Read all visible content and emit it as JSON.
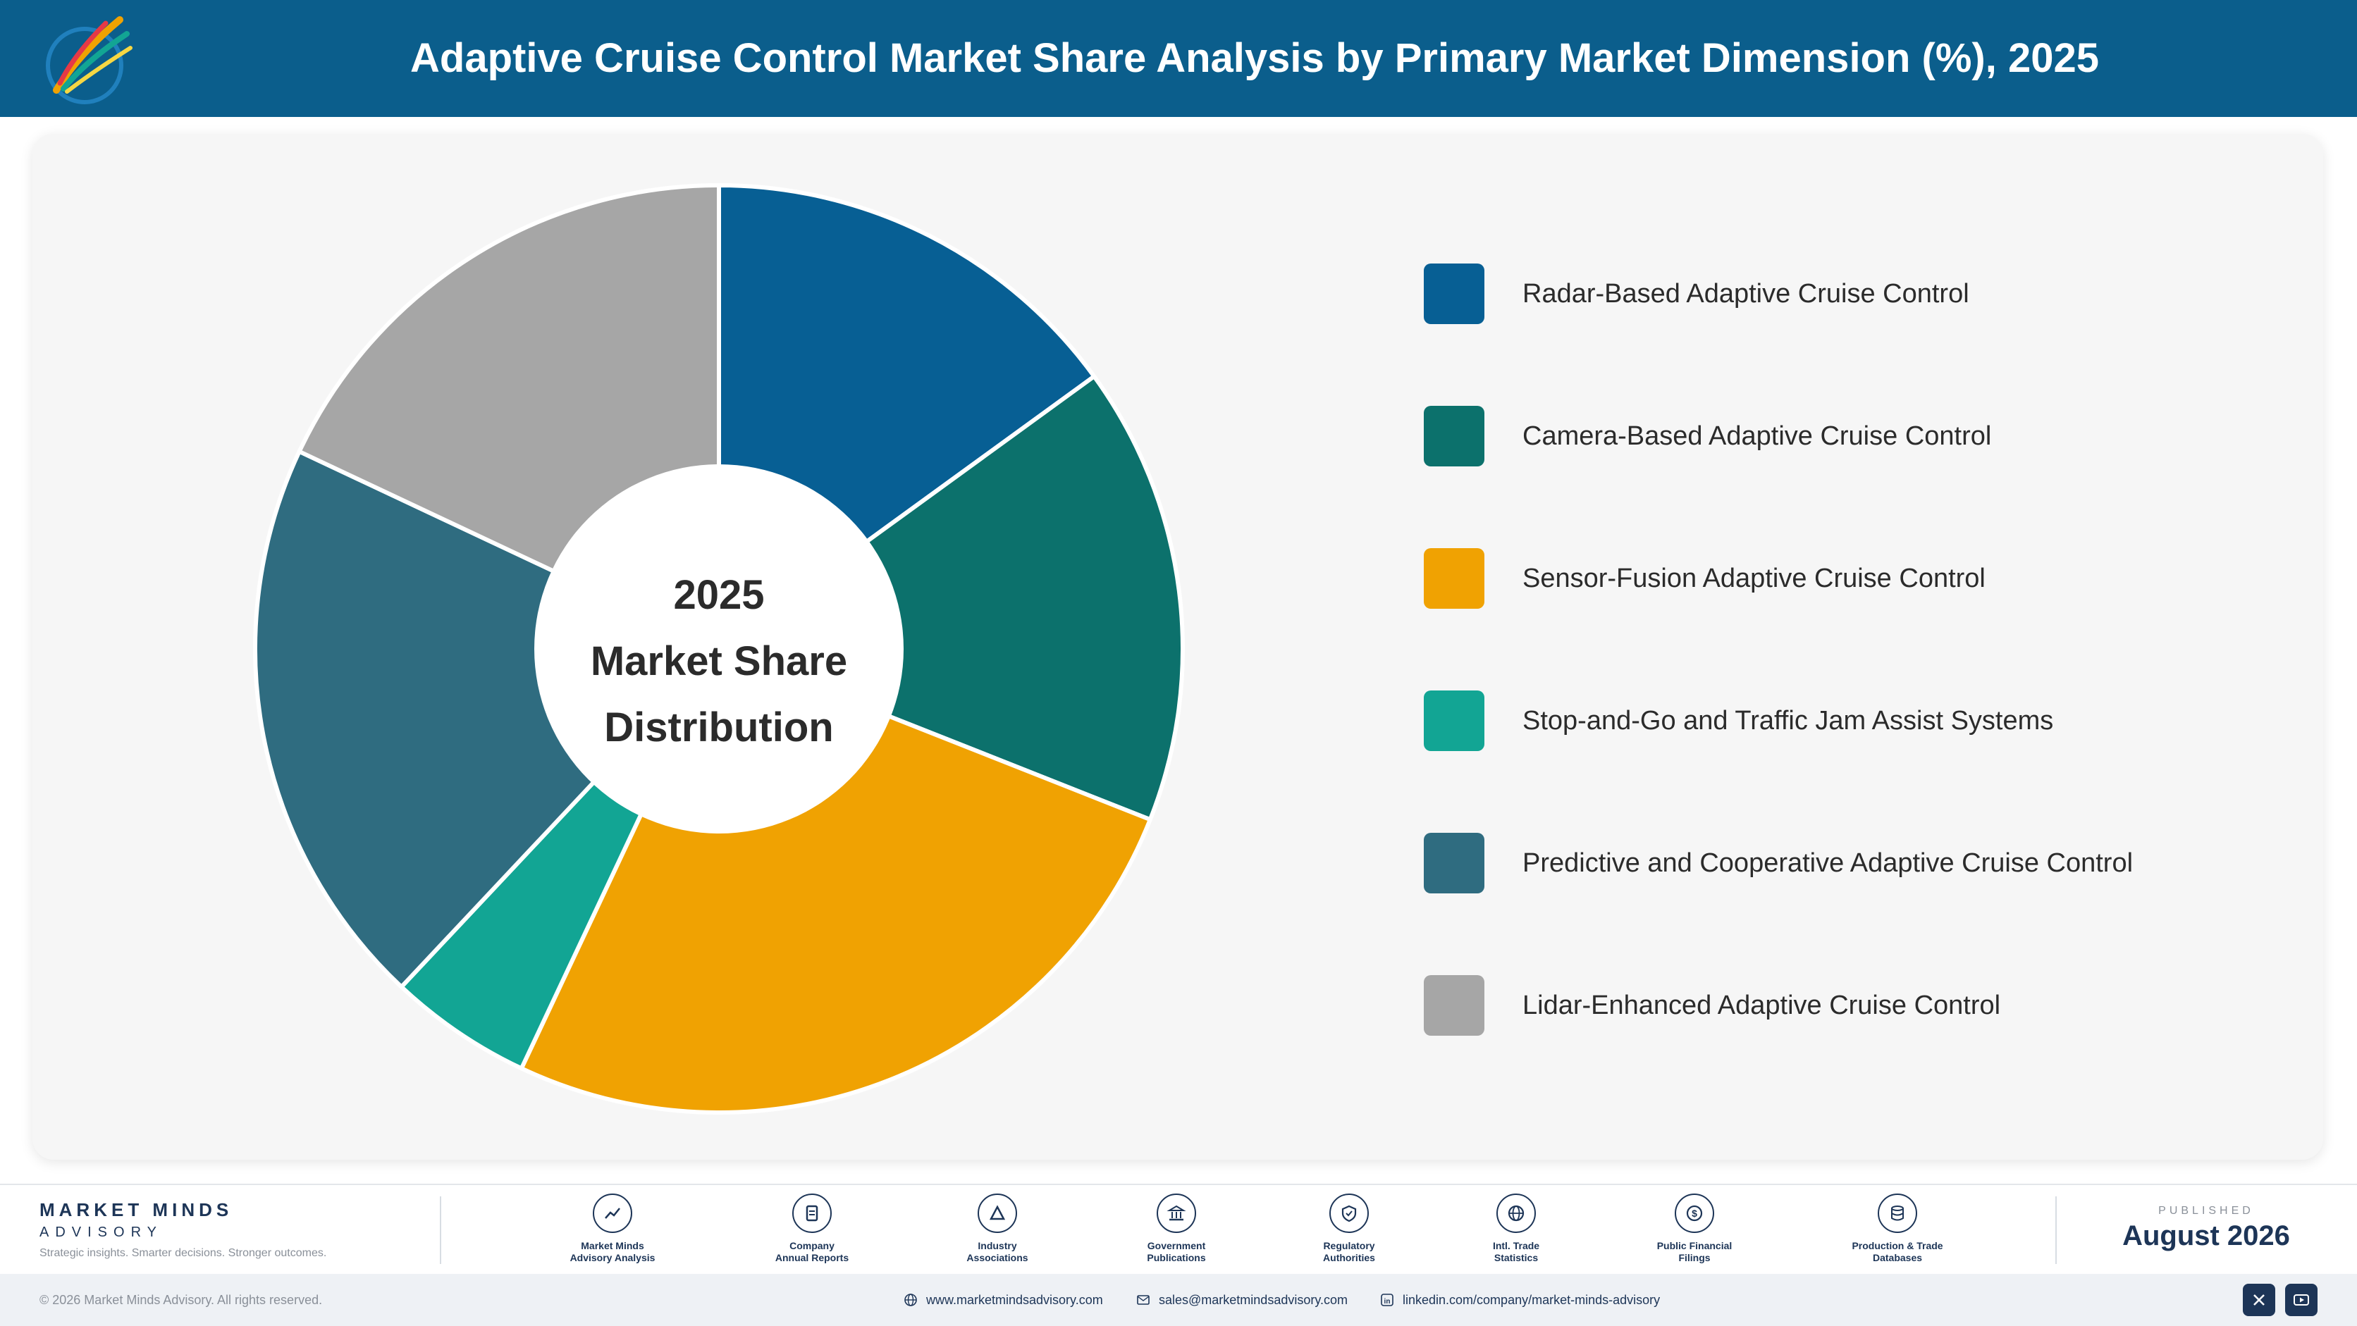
{
  "header": {
    "title": "Adaptive Cruise Control Market Share Analysis by Primary Market Dimension (%), 2025",
    "logo_icon": "brush-strokes-logo-icon"
  },
  "chart_data": {
    "type": "pie",
    "title": "Adaptive Cruise Control Market Share Analysis by Primary Market Dimension (%), 2025",
    "center_label": [
      "2025",
      "Market Share",
      "Distribution"
    ],
    "legend_position": "right",
    "unit": "%",
    "slices": [
      {
        "name": "Radar-Based Adaptive Cruise Control",
        "value": 15,
        "color": "#075f94"
      },
      {
        "name": "Camera-Based Adaptive Cruise Control",
        "value": 16,
        "color": "#0c716c"
      },
      {
        "name": "Sensor-Fusion Adaptive Cruise Control",
        "value": 26,
        "color": "#f0a202"
      },
      {
        "name": "Stop-and-Go and Traffic Jam Assist Systems",
        "value": 5,
        "color": "#12a594"
      },
      {
        "name": "Predictive and Cooperative Adaptive Cruise Control",
        "value": 20,
        "color": "#2f6c80"
      },
      {
        "name": "Lidar-Enhanced Adaptive Cruise Control",
        "value": 18,
        "color": "#a6a6a6"
      }
    ]
  },
  "footer": {
    "brand_name": "MARKET MINDS",
    "brand_sub": "ADVISORY",
    "brand_tagline": "Strategic insights. Smarter decisions. Stronger outcomes.",
    "sources": [
      {
        "label": "Market Minds\nAdvisory Analysis",
        "icon": "trend-line-icon"
      },
      {
        "label": "Company\nAnnual Reports",
        "icon": "document-icon"
      },
      {
        "label": "Industry\nAssociations",
        "icon": "network-icon"
      },
      {
        "label": "Government\nPublications",
        "icon": "government-building-icon"
      },
      {
        "label": "Regulatory\nAuthorities",
        "icon": "shield-check-icon"
      },
      {
        "label": "Intl. Trade\nStatistics",
        "icon": "globe-icon"
      },
      {
        "label": "Public Financial\nFilings",
        "icon": "dollar-coin-icon"
      },
      {
        "label": "Production & Trade\nDatabases",
        "icon": "database-icon"
      }
    ],
    "published_label": "PUBLISHED",
    "published_date": "August 2026",
    "copyright": "© 2026 Market Minds Advisory. All rights reserved.",
    "website": "www.marketmindsadvisory.com",
    "email": "sales@marketmindsadvisory.com",
    "linkedin": "linkedin.com/company/market-minds-advisory",
    "social": [
      {
        "icon": "x-icon"
      },
      {
        "icon": "youtube-icon"
      }
    ]
  }
}
